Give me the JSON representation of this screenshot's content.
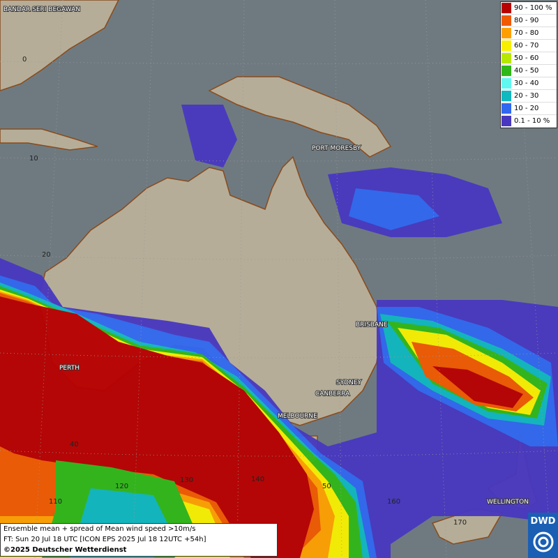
{
  "map": {
    "labels": [
      "BANDAR SERI BEGAWAN",
      "PORT MORESBY",
      "BRISBANE",
      "PERTH",
      "SYDNEY",
      "CANBERRA",
      "MELBOURNE",
      "WELLINGTON"
    ],
    "grid_labels": [
      "0",
      "10",
      "20",
      "40",
      "110",
      "120",
      "130",
      "140",
      "50",
      "160",
      "170"
    ],
    "legend": [
      {
        "label": "90 - 100 %",
        "color": "#b80000"
      },
      {
        "label": "80 - 90",
        "color": "#f05a00"
      },
      {
        "label": "70 - 80",
        "color": "#ffa000"
      },
      {
        "label": "60 - 70",
        "color": "#f8f000"
      },
      {
        "label": "50 - 60",
        "color": "#b8e800"
      },
      {
        "label": "40 - 50",
        "color": "#30b818"
      },
      {
        "label": "30 - 40",
        "color": "#60f8f0"
      },
      {
        "label": "20 - 30",
        "color": "#10b8c0"
      },
      {
        "label": "10 - 20",
        "color": "#3068f0"
      },
      {
        "label": "0.1 - 10 %",
        "color": "#4838c0"
      }
    ],
    "footer": [
      "Ensemble mean + spread of Mean wind speed >10m/s",
      "FT: Sun 20 Jul 18 UTC [ICON EPS 2025 Jul 18 12UTC +54h]",
      "©2025 Deutscher Wetterdienst"
    ],
    "logo": "DWD"
  }
}
